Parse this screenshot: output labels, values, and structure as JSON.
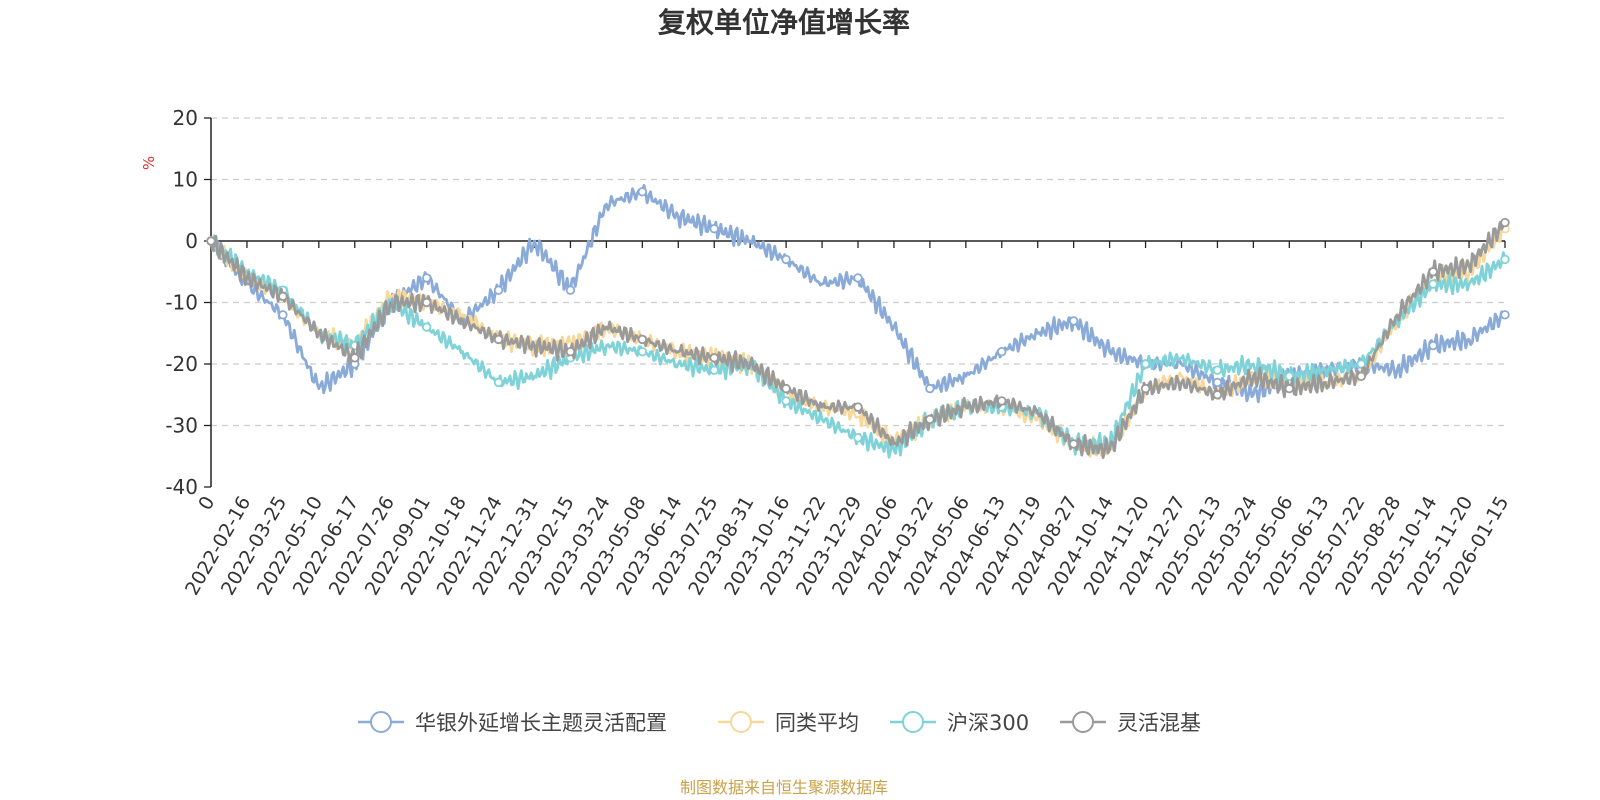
{
  "colors": {
    "fund": "#8aaad8",
    "peer_avg": "#f8d79a",
    "hs300": "#7fd3d8",
    "flex_mix": "#9a9a9a",
    "unit_label": "#e03030",
    "source_label": "#c9a24a",
    "grid": "#cccccc",
    "axis": "#222222"
  },
  "source_note": "制图数据来自恒生聚源数据库",
  "chart_data": {
    "type": "line",
    "title": "复权单位净值增长率",
    "ylabel": "%",
    "xlabel": "",
    "ylim": [
      -40,
      20
    ],
    "yticks": [
      20,
      10,
      0,
      -10,
      -20,
      -30,
      -40
    ],
    "grid": true,
    "legend_position": "bottom",
    "categories": [
      "0",
      "2022-02-16",
      "2022-03-25",
      "2022-05-10",
      "2022-06-17",
      "2022-07-26",
      "2022-09-01",
      "2022-10-18",
      "2022-11-24",
      "2022-12-31",
      "2023-02-15",
      "2023-03-24",
      "2023-05-08",
      "2023-06-14",
      "2023-07-25",
      "2023-08-31",
      "2023-10-16",
      "2023-11-22",
      "2023-12-29",
      "2024-02-06",
      "2024-03-22",
      "2024-05-06",
      "2024-06-13",
      "2024-07-19",
      "2024-08-27",
      "2024-10-14",
      "2024-11-20",
      "2024-12-27",
      "2025-02-13",
      "2025-03-24",
      "2025-05-06",
      "2025-06-13",
      "2025-07-22",
      "2025-08-28",
      "2025-10-14",
      "2025-11-20",
      "2026-01-15"
    ],
    "series": [
      {
        "name": "华银外延增长主题灵活配置",
        "color_key": "fund",
        "values": [
          0,
          -7,
          -12,
          -24,
          -20,
          -10,
          -6,
          -13,
          -8,
          0,
          -8,
          6,
          8,
          4,
          2,
          0,
          -3,
          -7,
          -6,
          -14,
          -24,
          -22,
          -18,
          -15,
          -13,
          -18,
          -20,
          -20,
          -23,
          -25,
          -22,
          -21,
          -20,
          -21,
          -17,
          -16,
          -12
        ]
      },
      {
        "name": "同类平均",
        "color_key": "peer_avg",
        "values": [
          0,
          -6,
          -9,
          -15,
          -17,
          -9,
          -10,
          -12,
          -16,
          -17,
          -17,
          -14,
          -16,
          -18,
          -19,
          -20,
          -25,
          -27,
          -28,
          -33,
          -29,
          -27,
          -27,
          -29,
          -33,
          -34,
          -24,
          -22,
          -25,
          -22,
          -23,
          -23,
          -22,
          -13,
          -6,
          -5,
          2
        ]
      },
      {
        "name": "沪深300",
        "color_key": "hs300",
        "values": [
          0,
          -5,
          -8,
          -15,
          -17,
          -10,
          -14,
          -18,
          -23,
          -22,
          -19,
          -17,
          -18,
          -20,
          -21,
          -20,
          -26,
          -29,
          -32,
          -34,
          -29,
          -27,
          -27,
          -28,
          -33,
          -33,
          -20,
          -19,
          -21,
          -20,
          -22,
          -21,
          -20,
          -13,
          -7,
          -7,
          -3
        ]
      },
      {
        "name": "灵活混基",
        "color_key": "flex_mix",
        "values": [
          0,
          -6,
          -9,
          -15,
          -19,
          -10,
          -10,
          -13,
          -16,
          -17,
          -18,
          -14,
          -16,
          -18,
          -19,
          -20,
          -24,
          -27,
          -27,
          -33,
          -29,
          -27,
          -26,
          -28,
          -33,
          -34,
          -24,
          -23,
          -25,
          -22,
          -24,
          -23,
          -22,
          -12,
          -5,
          -4,
          3
        ]
      }
    ]
  }
}
